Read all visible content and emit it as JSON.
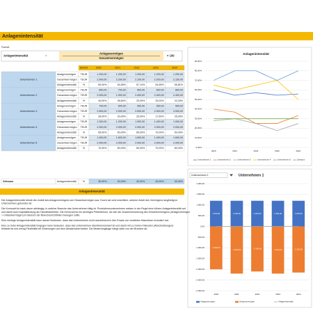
{
  "title": "Anlagenintensität",
  "formula": {
    "label": "Formel:",
    "lhs": "Anlagenintensität",
    "equals": "=",
    "numerator": "Anlagevermögen",
    "denominator": "Gesamtvermögen",
    "factor": "× 100"
  },
  "table": {
    "headers": [
      "Einheit",
      "2020",
      "2021",
      "2022",
      "2023",
      "2024"
    ],
    "groups": [
      {
        "name": "Unternehmen 1",
        "rows": [
          [
            "Anlagevermögen",
            "TEUR",
            "1.200,00",
            "1.200,00",
            "1.200,00",
            "1.200,00",
            "1.200,00"
          ],
          [
            "Gesamtvermögen",
            "TEUR",
            "2.000,00",
            "2.200,00",
            "2.100,00",
            "2.200,00",
            "2.150,00"
          ],
          [
            "Anlagenintensität",
            "%",
            "60,00%",
            "54,55%",
            "57,14%",
            "54,55%",
            "55,81%"
          ]
        ]
      },
      {
        "name": "Unternehmen 2",
        "rows": [
          [
            "Anlagevermögen",
            "TEUR",
            "800,00",
            "700,00",
            "600,00",
            "600,00",
            "800,00"
          ],
          [
            "Gesamtvermögen",
            "TEUR",
            "2.000,00",
            "1.900,00",
            "2.400,00",
            "2.400,00",
            "2.400,00"
          ],
          [
            "Anlagenintensität",
            "%",
            "40,00%",
            "36,84%",
            "25,00%",
            "25,00%",
            "33,33%"
          ]
        ]
      },
      {
        "name": "Unternehmen 3",
        "rows": [
          [
            "Anlagevermögen",
            "TEUR",
            "700,00",
            "600,00",
            "500,00",
            "350,00",
            "500,00"
          ],
          [
            "Gesamtvermögen",
            "TEUR",
            "2.500,00",
            "2.000,00",
            "2.000,00",
            "2.000,00",
            "2.000,00"
          ],
          [
            "Anlagenintensität",
            "%",
            "28,00%",
            "30,00%",
            "25,00%",
            "17,50%",
            "25,00%"
          ]
        ]
      },
      {
        "name": "Unternehmen 4",
        "rows": [
          [
            "Anlagevermögen",
            "TEUR",
            "1.300,00",
            "1.200,00",
            "1.300,00",
            "1.400,00",
            "1.000,00"
          ],
          [
            "Gesamtvermögen",
            "TEUR",
            "2.000,00",
            "2.000,00",
            "2.000,00",
            "2.000,00",
            "2.000,00"
          ],
          [
            "Anlagenintensität",
            "%",
            "65,00%",
            "60,00%",
            "65,00%",
            "70,00%",
            "50,00%"
          ]
        ]
      },
      {
        "name": "Unternehmen 5",
        "rows": [
          [
            "Anlagevermögen",
            "TEUR",
            "1.400,00",
            "1.600,00",
            "1.600,00",
            "1.400,00",
            "1.600,00"
          ],
          [
            "Gesamtvermögen",
            "TEUR",
            "2.000,00",
            "2.000,00",
            "2.000,00",
            "2.000,00",
            "2.000,00"
          ],
          [
            "Anlagenintensität",
            "%",
            "70,00%",
            "80,00%",
            "80,00%",
            "70,00%",
            "80,00%"
          ]
        ]
      }
    ],
    "total": {
      "name": "Zeitraum",
      "row": [
        "Anlagenintensität",
        "%",
        "30,00%",
        "30,00%",
        "30,00%",
        "30,00%",
        "30,00%"
      ]
    }
  },
  "section": {
    "title": "Anlagenintensität",
    "paragraphs": [
      [
        "Die Anlagenintensität drückt den Anteil des Anlagevermögens am Gesamtvermögen aus. Durch sie wird ersichtlich, welcher Anteil des Vermögens langfristig im",
        "Unternehmen gebunden ist."
      ],
      [
        "Die Kennzahl ist stark davon abhängig, in welcher Branche das Unternehmen tätig ist. Produktionsunternehmen weisen in der Regel eine höhere Anlagenintensität auf",
        "und damit auch Kapitalbindung als Handelsbetriebe. Die Kennzahl ist ein wichtiges Prüfkriterium, da sich die Zusammensetzung des Gesamtvermögens (Anlagevermögen",
        "+ Umlaufvermögen) im Bereich der Branchenrichtlinien bewegen sollte."
      ],
      [
        "Eine niedrige Anlagenintensität kann darauf hindeuten, dass das Unternehmen nicht ausreichend in den Ersatz von veralteten Maschinen investiert hat."
      ],
      [
        "Eine zu hohe Anlagenintensität hingegen kann bedeuten, dass das Unternehmen überdimensioniert ist und damit mit zu hohen Fixkosten (Abschreibungen)",
        "belastet ist und wenig Flexibilität bei Änderungen auf dem Absatzmarkt besitzt. Die Bewertungslage hängt stark von der Branche ab."
      ]
    ]
  },
  "chart_data": [
    {
      "type": "line",
      "title": "Anlagenintensität",
      "categories": [
        "2020",
        "2021",
        "2022",
        "2023",
        "2024"
      ],
      "grid": true,
      "series": [
        {
          "name": "Unternehmen 1",
          "color": "#4472c4",
          "values": [
            60,
            54.55,
            57.14,
            54.55,
            55.81
          ]
        },
        {
          "name": "Unternehmen 2",
          "color": "#ed7d31",
          "values": [
            40,
            36.84,
            25,
            25,
            33.33
          ]
        },
        {
          "name": "Unternehmen 3",
          "color": "#a5a5a5",
          "values": [
            28,
            30,
            25,
            17.5,
            25
          ]
        },
        {
          "name": "Unternehmen 4",
          "color": "#ffc000",
          "values": [
            65,
            60,
            65,
            70,
            50
          ]
        },
        {
          "name": "Unternehmen 5",
          "color": "#5b9bd5",
          "values": [
            70,
            80,
            80,
            70,
            80
          ]
        },
        {
          "name": "Zeitraum",
          "color": "#70ad47",
          "values": [
            30,
            30,
            30,
            30,
            30
          ]
        }
      ],
      "ylim": [
        0,
        90
      ],
      "yticks": [
        {
          "value": 0,
          "label": "0,00%"
        },
        {
          "value": 10,
          "label": "10,00%"
        },
        {
          "value": 20,
          "label": "20,00%"
        },
        {
          "value": 30,
          "label": "30,00%"
        },
        {
          "value": 40,
          "label": "40,00%"
        },
        {
          "value": 50,
          "label": "50,00%"
        },
        {
          "value": 60,
          "label": "60,00%"
        },
        {
          "value": 70,
          "label": "70,00%"
        },
        {
          "value": 80,
          "label": "80,00%"
        },
        {
          "value": 90,
          "label": "90,00%"
        }
      ]
    },
    {
      "type": "bar",
      "title": "Unternehmen 1",
      "selector": "Unternehmen 1",
      "categories": [
        "2020",
        "2021",
        "2022",
        "2023",
        "2024"
      ],
      "grid": true,
      "series": [
        {
          "name": "Anlagevermögen",
          "color": "#4472c4",
          "values": [
            1200,
            1200,
            1200,
            1200,
            1200
          ],
          "value_labels": [
            "1.200,00",
            "1.200,00",
            "1.200,00",
            "1.200,00",
            "1.200,00"
          ]
        },
        {
          "name": "Gesamtvermögen",
          "color": "#ed7d31",
          "values": [
            -2000,
            -2200,
            -2100,
            -2200,
            -2150
          ],
          "value_labels": [
            "-2.000,00",
            "-2.200,00",
            "-2.100,00",
            "-2.200,00",
            "-2.150,00"
          ]
        },
        {
          "name": "Anlagenintensität",
          "type": "line",
          "color": "#a5a5a5",
          "values": [
            0.6,
            0.5455,
            0.5714,
            0.5455,
            0.5581
          ]
        }
      ],
      "ylim": [
        -3000,
        2000
      ],
      "yticks": [
        {
          "value": 2000,
          "label": "2.000,00"
        },
        {
          "value": 1500,
          "label": "1.500,00"
        },
        {
          "value": 1000,
          "label": "1.000,00"
        },
        {
          "value": 500,
          "label": "500,00"
        },
        {
          "value": 0,
          "label": "0,00"
        },
        {
          "value": -500,
          "label": "-500,00"
        },
        {
          "value": -1000,
          "label": "-1.000,00"
        },
        {
          "value": -1500,
          "label": "-1.500,00"
        },
        {
          "value": -2000,
          "label": "-2.000,00"
        },
        {
          "value": -2500,
          "label": "-2.500,00"
        },
        {
          "value": -3000,
          "label": "-3.000,00"
        }
      ]
    }
  ]
}
